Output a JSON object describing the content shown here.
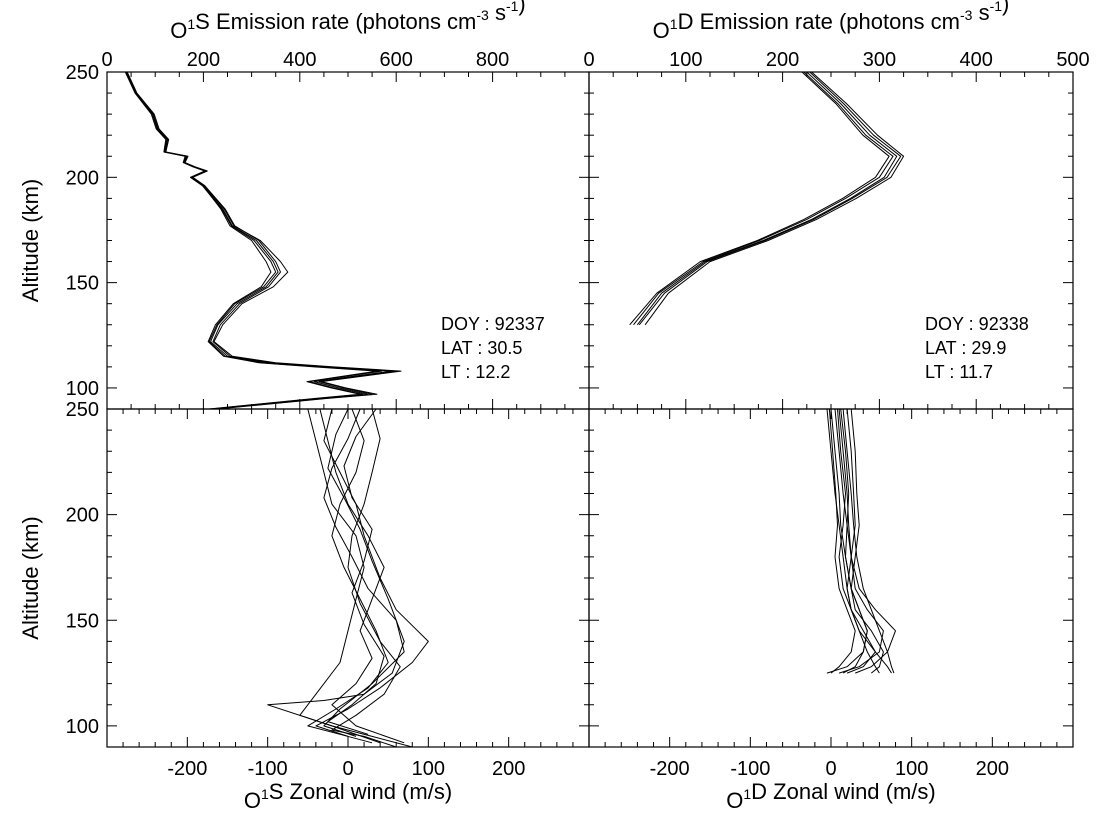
{
  "chart_data": [
    {
      "type": "line",
      "panel": "top-left",
      "title": "O¹S Emission rate (photons cm⁻³ s⁻¹)",
      "title_parts": {
        "base": "O",
        "sup1": "1",
        "mid": "S Emission rate (photons cm",
        "sup2": "-3",
        "mid2": " s",
        "sup3": "-1",
        "end": ")"
      },
      "ylabel": "Altitude (km)",
      "xlim": [
        0,
        1000
      ],
      "ylim": [
        90,
        250
      ],
      "xticks": [
        0,
        200,
        400,
        600,
        800
      ],
      "yticks": [
        100,
        150,
        200,
        250
      ],
      "annotation": [
        "DOY : 92337",
        "LAT : 30.5",
        "LT : 12.2"
      ],
      "series": [
        {
          "x": [
            40,
            60,
            95,
            105,
            125,
            120,
            165,
            160,
            180,
            205,
            175,
            200,
            240,
            260,
            310,
            345,
            355,
            330,
            270,
            230,
            215,
            250,
            330,
            450,
            590,
            430,
            480,
            540,
            440,
            220
          ],
          "y": [
            250,
            240,
            230,
            223,
            218,
            212,
            210,
            207,
            205,
            203,
            200,
            196,
            185,
            177,
            170,
            160,
            155,
            148,
            140,
            130,
            122,
            115,
            112,
            110,
            108,
            103,
            100,
            97,
            95,
            90
          ]
        },
        {
          "x": [
            42,
            62,
            98,
            108,
            128,
            122,
            168,
            162,
            183,
            208,
            178,
            203,
            245,
            265,
            315,
            350,
            360,
            335,
            275,
            235,
            220,
            255,
            340,
            460,
            600,
            440,
            490,
            550,
            450,
            225
          ],
          "y": [
            250,
            240,
            230,
            223,
            218,
            212,
            210,
            207,
            205,
            203,
            200,
            196,
            185,
            177,
            170,
            160,
            155,
            148,
            140,
            130,
            122,
            115,
            112,
            110,
            108,
            103,
            100,
            97,
            95,
            90
          ]
        },
        {
          "x": [
            38,
            58,
            92,
            102,
            122,
            118,
            162,
            158,
            178,
            203,
            173,
            198,
            238,
            258,
            305,
            340,
            350,
            325,
            265,
            228,
            212,
            245,
            320,
            440,
            570,
            420,
            470,
            530,
            435,
            215
          ],
          "y": [
            250,
            240,
            230,
            223,
            218,
            212,
            210,
            207,
            205,
            203,
            200,
            196,
            185,
            177,
            170,
            160,
            155,
            148,
            140,
            130,
            122,
            115,
            112,
            110,
            108,
            103,
            100,
            97,
            95,
            90
          ]
        },
        {
          "x": [
            41,
            61,
            96,
            106,
            126,
            121,
            166,
            161,
            181,
            206,
            176,
            201,
            243,
            263,
            318,
            360,
            375,
            345,
            280,
            240,
            222,
            260,
            350,
            470,
            610,
            445,
            495,
            560,
            455,
            228
          ],
          "y": [
            250,
            240,
            230,
            223,
            218,
            212,
            210,
            207,
            205,
            203,
            200,
            196,
            185,
            177,
            170,
            160,
            155,
            148,
            140,
            130,
            122,
            115,
            112,
            110,
            108,
            103,
            100,
            97,
            95,
            90
          ]
        },
        {
          "x": [
            39,
            59,
            94,
            104,
            124,
            119,
            164,
            159,
            179,
            204,
            174,
            199,
            236,
            255,
            300,
            330,
            340,
            320,
            262,
            225,
            210,
            242,
            315,
            430,
            560,
            415,
            465,
            525,
            430,
            212
          ],
          "y": [
            250,
            240,
            230,
            223,
            218,
            212,
            210,
            207,
            205,
            203,
            200,
            196,
            185,
            177,
            170,
            160,
            155,
            148,
            140,
            130,
            122,
            115,
            112,
            110,
            108,
            103,
            100,
            97,
            95,
            90
          ]
        }
      ]
    },
    {
      "type": "line",
      "panel": "top-right",
      "title": "O¹D Emission rate (photons cm⁻³ s⁻¹)",
      "title_parts": {
        "base": "O",
        "sup1": "1",
        "mid": "D Emission rate (photons cm",
        "sup2": "-3",
        "mid2": " s",
        "sup3": "-1",
        "end": ")"
      },
      "xlim": [
        0,
        500
      ],
      "ylim": [
        90,
        250
      ],
      "xticks": [
        0,
        100,
        200,
        300,
        400,
        500
      ],
      "yticks": [
        100,
        150,
        200,
        250
      ],
      "annotation": [
        "DOY : 92338",
        "LAT : 29.9",
        "LT : 11.7"
      ],
      "series": [
        {
          "x": [
            225,
            260,
            290,
            318,
            305,
            270,
            230,
            180,
            120,
            75,
            50
          ],
          "y": [
            250,
            235,
            220,
            210,
            200,
            190,
            180,
            170,
            160,
            145,
            130
          ]
        },
        {
          "x": [
            228,
            263,
            294,
            322,
            308,
            272,
            232,
            182,
            122,
            78,
            52
          ],
          "y": [
            250,
            235,
            220,
            210,
            200,
            190,
            180,
            170,
            160,
            145,
            130
          ]
        },
        {
          "x": [
            222,
            257,
            286,
            314,
            300,
            265,
            225,
            176,
            118,
            72,
            46
          ],
          "y": [
            250,
            235,
            220,
            210,
            200,
            190,
            180,
            170,
            160,
            145,
            130
          ]
        },
        {
          "x": [
            230,
            266,
            298,
            325,
            312,
            276,
            235,
            185,
            125,
            82,
            58
          ],
          "y": [
            250,
            235,
            220,
            210,
            200,
            190,
            180,
            170,
            160,
            145,
            130
          ]
        },
        {
          "x": [
            220,
            255,
            283,
            310,
            296,
            262,
            222,
            174,
            115,
            70,
            42
          ],
          "y": [
            250,
            235,
            220,
            210,
            200,
            190,
            180,
            170,
            160,
            145,
            130
          ]
        }
      ]
    },
    {
      "type": "line",
      "panel": "bottom-left",
      "xlabel": "O¹S Zonal wind (m/s)",
      "xlabel_parts": {
        "base": "O",
        "sup1": "1",
        "end": "S Zonal wind (m/s)"
      },
      "ylabel": "Altitude (km)",
      "xlim": [
        -300,
        300
      ],
      "ylim": [
        90,
        250
      ],
      "xticks": [
        -200,
        -100,
        0,
        100,
        200
      ],
      "yticks": [
        100,
        150,
        200,
        250
      ],
      "series": [
        {
          "x": [
            -50,
            -40,
            -30,
            -20,
            10,
            20,
            10,
            0,
            -10,
            -40,
            -60,
            -20,
            30,
            80
          ],
          "y": [
            250,
            235,
            220,
            205,
            190,
            175,
            160,
            145,
            130,
            115,
            105,
            100,
            95,
            90
          ]
        },
        {
          "x": [
            0,
            -15,
            -25,
            -5,
            15,
            30,
            50,
            70,
            55,
            20,
            -30,
            -100,
            -20,
            40
          ],
          "y": [
            250,
            238,
            222,
            208,
            193,
            178,
            160,
            140,
            125,
            115,
            112,
            110,
            100,
            92
          ]
        },
        {
          "x": [
            30,
            40,
            30,
            20,
            5,
            0,
            15,
            40,
            65,
            45,
            10,
            -20,
            20,
            60
          ],
          "y": [
            250,
            236,
            220,
            205,
            190,
            175,
            158,
            140,
            128,
            115,
            105,
            98,
            95,
            90
          ]
        },
        {
          "x": [
            -20,
            -30,
            -10,
            10,
            20,
            40,
            60,
            100,
            80,
            40,
            0,
            -40,
            0
          ],
          "y": [
            250,
            235,
            220,
            205,
            190,
            170,
            155,
            140,
            130,
            118,
            108,
            100,
            95
          ]
        },
        {
          "x": [
            5,
            20,
            10,
            -10,
            -20,
            -5,
            15,
            35,
            50,
            25,
            -15,
            -50,
            -10,
            30
          ],
          "y": [
            250,
            235,
            220,
            205,
            190,
            175,
            160,
            145,
            130,
            118,
            108,
            100,
            96,
            92
          ]
        },
        {
          "x": [
            -35,
            -25,
            -15,
            0,
            25,
            45,
            30,
            15,
            30,
            10,
            -20,
            10,
            70
          ],
          "y": [
            250,
            235,
            220,
            205,
            190,
            175,
            160,
            145,
            132,
            120,
            110,
            100,
            92
          ]
        },
        {
          "x": [
            15,
            0,
            -20,
            -30,
            -15,
            5,
            25,
            60,
            70,
            30,
            -10,
            -30,
            10
          ],
          "y": [
            250,
            236,
            222,
            208,
            194,
            180,
            165,
            150,
            135,
            120,
            108,
            100,
            95
          ]
        },
        {
          "x": [
            35,
            10,
            -5,
            5,
            30,
            20,
            5,
            20,
            45,
            35,
            5,
            -25,
            25
          ],
          "y": [
            250,
            237,
            223,
            208,
            193,
            178,
            163,
            148,
            133,
            120,
            110,
            102,
            96
          ]
        }
      ]
    },
    {
      "type": "line",
      "panel": "bottom-right",
      "xlabel": "O¹D Zonal wind (m/s)",
      "xlabel_parts": {
        "base": "O",
        "sup1": "1",
        "end": "D Zonal wind (m/s)"
      },
      "xlim": [
        -300,
        300
      ],
      "ylim": [
        90,
        250
      ],
      "xticks": [
        -200,
        -100,
        0,
        100,
        200
      ],
      "yticks": [
        100,
        150,
        200,
        250
      ],
      "series": [
        {
          "x": [
            -5,
            0,
            5,
            10,
            15,
            20,
            25,
            35,
            45,
            55,
            60
          ],
          "y": [
            250,
            230,
            210,
            195,
            180,
            165,
            155,
            145,
            135,
            128,
            125
          ]
        },
        {
          "x": [
            0,
            5,
            10,
            12,
            18,
            25,
            35,
            45,
            40,
            20,
            -5
          ],
          "y": [
            250,
            230,
            210,
            195,
            180,
            165,
            155,
            145,
            135,
            128,
            125
          ]
        },
        {
          "x": [
            5,
            10,
            15,
            20,
            25,
            30,
            45,
            65,
            60,
            35,
            10
          ],
          "y": [
            250,
            230,
            210,
            195,
            180,
            165,
            155,
            145,
            135,
            128,
            125
          ]
        },
        {
          "x": [
            10,
            15,
            20,
            22,
            25,
            35,
            55,
            80,
            70,
            50,
            30
          ],
          "y": [
            250,
            230,
            210,
            195,
            180,
            165,
            155,
            145,
            135,
            128,
            125
          ]
        },
        {
          "x": [
            15,
            20,
            25,
            28,
            32,
            40,
            50,
            60,
            70,
            75,
            78
          ],
          "y": [
            250,
            230,
            210,
            195,
            180,
            165,
            155,
            145,
            135,
            128,
            125
          ]
        },
        {
          "x": [
            20,
            25,
            28,
            30,
            25,
            20,
            25,
            35,
            55,
            70,
            75
          ],
          "y": [
            250,
            230,
            210,
            195,
            180,
            165,
            155,
            145,
            135,
            128,
            125
          ]
        },
        {
          "x": [
            -2,
            2,
            6,
            8,
            5,
            10,
            20,
            30,
            25,
            10,
            0
          ],
          "y": [
            250,
            230,
            210,
            195,
            180,
            165,
            155,
            145,
            135,
            128,
            125
          ]
        },
        {
          "x": [
            8,
            12,
            18,
            15,
            10,
            15,
            25,
            40,
            55,
            40,
            20
          ],
          "y": [
            250,
            230,
            210,
            195,
            180,
            165,
            155,
            145,
            135,
            128,
            125
          ]
        },
        {
          "x": [
            12,
            18,
            22,
            20,
            18,
            25,
            30,
            50,
            65,
            60,
            50
          ],
          "y": [
            250,
            230,
            210,
            195,
            180,
            165,
            155,
            145,
            135,
            128,
            125
          ]
        },
        {
          "x": [
            25,
            30,
            32,
            35,
            30,
            25,
            35,
            45,
            40,
            30,
            15
          ],
          "y": [
            250,
            230,
            210,
            195,
            180,
            165,
            155,
            145,
            135,
            128,
            125
          ]
        }
      ]
    }
  ]
}
